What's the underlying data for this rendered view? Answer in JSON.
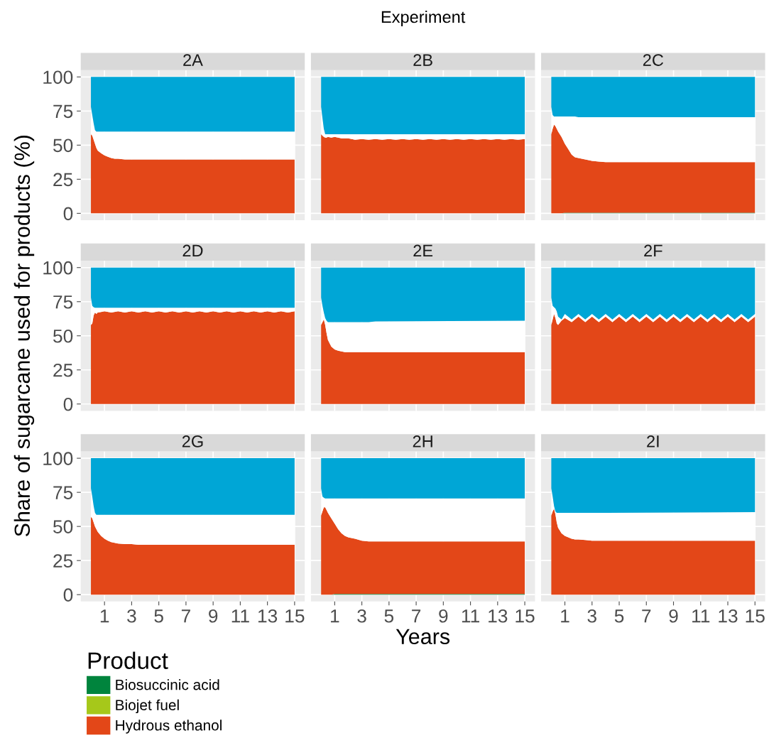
{
  "chart_data": [
    {
      "type": "area",
      "stacked": true,
      "title": "2A",
      "annotations": [
        "Experiment"
      ],
      "tick_labels": "y",
      "xlim": [
        -0.75,
        15.75
      ],
      "ylim": [
        -5,
        105
      ],
      "xticks": [
        1,
        3,
        5,
        7,
        9,
        11,
        13,
        15
      ],
      "yticks": [
        0,
        25,
        50,
        75,
        100
      ],
      "grid": true,
      "x": [
        0,
        0.1,
        0.2,
        0.3,
        0.4,
        0.5,
        0.75,
        1,
        1.25,
        1.5,
        1.75,
        2,
        2.5,
        3,
        3.5,
        4,
        15
      ],
      "series": [
        {
          "color": "#e34718",
          "values": [
            58,
            57,
            54,
            51,
            48,
            46,
            44,
            42.5,
            41.5,
            40.5,
            40,
            40,
            39.5,
            39.5,
            39.5,
            39.5,
            39.5
          ]
        },
        {
          "color": "#ffffff",
          "values": [
            20,
            15,
            12,
            10,
            12,
            14,
            16,
            17.5,
            18.5,
            19.5,
            20,
            20,
            20.5,
            20.5,
            20.5,
            20.5,
            20.5
          ]
        },
        {
          "color": "#00a6d6",
          "values": [
            22,
            28,
            34,
            39,
            40,
            40,
            40,
            40,
            40,
            40,
            40,
            40,
            40,
            40,
            40,
            40,
            40
          ]
        }
      ]
    },
    {
      "type": "area",
      "stacked": true,
      "title": "2B",
      "tick_labels": false,
      "xlim": [
        -0.75,
        15.75
      ],
      "ylim": [
        -5,
        105
      ],
      "xticks": [
        1,
        3,
        5,
        7,
        9,
        11,
        13,
        15
      ],
      "yticks": [
        0,
        25,
        50,
        75,
        100
      ],
      "grid": true,
      "x": [
        0,
        0.1,
        0.2,
        0.3,
        0.4,
        0.5,
        0.75,
        1,
        1.5,
        2,
        2.5,
        3,
        3.5,
        4,
        4.5,
        5,
        5.5,
        6,
        6.5,
        7,
        7.5,
        8,
        8.5,
        9,
        9.5,
        10,
        10.5,
        11,
        11.5,
        12,
        12.5,
        13,
        13.5,
        14,
        14.5,
        15
      ],
      "series": [
        {
          "color": "#e34718",
          "values": [
            58,
            57,
            56,
            55.5,
            55.5,
            56,
            55.5,
            56,
            55,
            55,
            54,
            54.5,
            54,
            54.5,
            54,
            54.5,
            54,
            54.5,
            54,
            54.5,
            54,
            54.5,
            54,
            54.5,
            54,
            54.5,
            54,
            54.5,
            54,
            54.5,
            54,
            54.5,
            54,
            54.5,
            54,
            54.5
          ]
        },
        {
          "color": "#ffffff",
          "values": [
            20,
            13,
            6,
            2.5,
            2.5,
            2,
            2.5,
            2,
            3,
            3,
            4,
            3.5,
            4,
            3.5,
            4,
            3.5,
            4,
            3.5,
            4,
            3.5,
            4,
            3.5,
            4,
            3.5,
            4,
            3.5,
            4,
            3.5,
            4,
            3.5,
            4,
            3.5,
            4,
            3.5,
            4,
            3.5
          ]
        },
        {
          "color": "#00a6d6",
          "values": [
            22,
            30,
            38,
            42,
            42,
            42,
            42,
            42,
            42,
            42,
            42,
            42,
            42,
            42,
            42,
            42,
            42,
            42,
            42,
            42,
            42,
            42,
            42,
            42,
            42,
            42,
            42,
            42,
            42,
            42,
            42,
            42,
            42,
            42,
            42,
            42
          ]
        }
      ]
    },
    {
      "type": "area",
      "stacked": true,
      "title": "2C",
      "tick_labels": false,
      "xlim": [
        -0.75,
        15.75
      ],
      "ylim": [
        -5,
        105
      ],
      "xticks": [
        1,
        3,
        5,
        7,
        9,
        11,
        13,
        15
      ],
      "yticks": [
        0,
        25,
        50,
        75,
        100
      ],
      "grid": true,
      "x": [
        0,
        0.1,
        0.2,
        0.3,
        0.4,
        0.5,
        0.75,
        1,
        1.25,
        1.5,
        1.75,
        2,
        2.5,
        3,
        3.5,
        4,
        15
      ],
      "series": [
        {
          "color": "#00843d",
          "values": [
            0,
            0,
            0,
            0,
            0,
            0,
            0,
            0.5,
            0.5,
            0.5,
            0.5,
            0.5,
            0.5,
            0.5,
            0.5,
            0.5,
            0.5
          ]
        },
        {
          "color": "#e34718",
          "values": [
            58,
            62,
            65,
            64,
            62,
            60,
            56,
            50.5,
            46.5,
            42.5,
            40.5,
            40,
            39,
            38,
            37.5,
            37,
            37
          ]
        },
        {
          "color": "#ffffff",
          "values": [
            20,
            10,
            6,
            7,
            9,
            11,
            15,
            20,
            24,
            28,
            30,
            30,
            31,
            32,
            32.5,
            33,
            33
          ]
        },
        {
          "color": "#00a6d6",
          "values": [
            22,
            28,
            29,
            29,
            29,
            29,
            29,
            29,
            29,
            29,
            29,
            29.5,
            29.5,
            29.5,
            29.5,
            29.5,
            29.5
          ]
        }
      ]
    },
    {
      "type": "area",
      "stacked": true,
      "title": "2D",
      "ylabel": "Share of sugarcane used for products (%)",
      "tick_labels": "y",
      "xlim": [
        -0.75,
        15.75
      ],
      "ylim": [
        -5,
        105
      ],
      "xticks": [
        1,
        3,
        5,
        7,
        9,
        11,
        13,
        15
      ],
      "yticks": [
        0,
        25,
        50,
        75,
        100
      ],
      "grid": true,
      "x": [
        0,
        0.1,
        0.2,
        0.3,
        0.4,
        0.5,
        0.75,
        1,
        1.5,
        2,
        2.5,
        3,
        3.5,
        4,
        4.5,
        5,
        5.5,
        6,
        6.5,
        7,
        7.5,
        8,
        8.5,
        9,
        9.5,
        10,
        10.5,
        11,
        11.5,
        12,
        12.5,
        13,
        13.5,
        14,
        14.5,
        15
      ],
      "series": [
        {
          "color": "#e34718",
          "values": [
            58,
            59,
            65,
            67,
            66,
            67,
            67.5,
            68,
            67,
            68,
            67,
            68,
            67,
            68,
            67,
            68,
            67,
            68,
            67,
            68,
            67,
            68,
            67,
            68,
            67,
            68,
            67,
            68,
            67,
            68,
            67,
            68,
            67,
            68,
            67,
            68
          ]
        },
        {
          "color": "#ffffff",
          "values": [
            20,
            13,
            6,
            3.5,
            4.5,
            3.5,
            3,
            2.5,
            3.5,
            2.5,
            3.5,
            2.5,
            3.5,
            2.5,
            3.5,
            2.5,
            3.5,
            2.5,
            3.5,
            2.5,
            3.5,
            2.5,
            3.5,
            2.5,
            3.5,
            2.5,
            3.5,
            2.5,
            3.5,
            2.5,
            3.5,
            2.5,
            3.5,
            2.5,
            3.5,
            2.5
          ]
        },
        {
          "color": "#00a6d6",
          "values": [
            22,
            28,
            29,
            29.5,
            29.5,
            29.5,
            29.5,
            29.5,
            29.5,
            29.5,
            29.5,
            29.5,
            29.5,
            29.5,
            29.5,
            29.5,
            29.5,
            29.5,
            29.5,
            29.5,
            29.5,
            29.5,
            29.5,
            29.5,
            29.5,
            29.5,
            29.5,
            29.5,
            29.5,
            29.5,
            29.5,
            29.5,
            29.5,
            29.5,
            29.5,
            29.5
          ]
        }
      ]
    },
    {
      "type": "area",
      "stacked": true,
      "title": "2E",
      "tick_labels": false,
      "xlim": [
        -0.75,
        15.75
      ],
      "ylim": [
        -5,
        105
      ],
      "xticks": [
        1,
        3,
        5,
        7,
        9,
        11,
        13,
        15
      ],
      "yticks": [
        0,
        25,
        50,
        75,
        100
      ],
      "grid": true,
      "x": [
        0,
        0.1,
        0.2,
        0.3,
        0.4,
        0.5,
        0.75,
        1,
        1.25,
        1.5,
        1.75,
        2,
        2.5,
        3,
        3.5,
        4,
        15
      ],
      "series": [
        {
          "color": "#e34718",
          "values": [
            58,
            60,
            62,
            58,
            52,
            47,
            42,
            40,
            39,
            38.5,
            38,
            38,
            38,
            38,
            38,
            38,
            38
          ]
        },
        {
          "color": "#ffffff",
          "values": [
            20,
            12,
            5,
            5,
            9,
            13,
            18,
            20,
            21,
            21.5,
            22,
            22,
            22,
            22,
            22,
            22.5,
            23
          ]
        },
        {
          "color": "#00a6d6",
          "values": [
            22,
            28,
            33,
            37,
            39,
            40,
            40,
            40,
            40,
            40,
            40,
            40,
            40,
            40,
            40,
            39.5,
            39
          ]
        }
      ]
    },
    {
      "type": "area",
      "stacked": true,
      "title": "2F",
      "tick_labels": false,
      "xlim": [
        -0.75,
        15.75
      ],
      "ylim": [
        -5,
        105
      ],
      "xticks": [
        1,
        3,
        5,
        7,
        9,
        11,
        13,
        15
      ],
      "yticks": [
        0,
        25,
        50,
        75,
        100
      ],
      "grid": true,
      "x": [
        0,
        0.1,
        0.2,
        0.3,
        0.4,
        0.5,
        0.75,
        1,
        1.5,
        2,
        2.5,
        3,
        3.5,
        4,
        4.5,
        5,
        5.5,
        6,
        6.5,
        7,
        7.5,
        8,
        8.5,
        9,
        9.5,
        10,
        10.5,
        11,
        11.5,
        12,
        12.5,
        13,
        13.5,
        14,
        14.5,
        15
      ],
      "series": [
        {
          "color": "#e34718",
          "values": [
            58,
            62,
            66,
            63,
            59,
            58,
            61,
            63,
            60,
            64,
            60,
            64,
            60,
            64,
            60,
            64,
            60,
            64,
            60,
            64,
            60,
            64,
            60,
            64,
            60,
            64,
            60,
            64,
            60,
            64,
            60,
            64,
            60,
            64,
            60,
            64
          ]
        },
        {
          "color": "#ffffff",
          "values": [
            20,
            10,
            5,
            7,
            9,
            6,
            1,
            3,
            2,
            2,
            2,
            2,
            2,
            2,
            2,
            2,
            2,
            2,
            2,
            2,
            2,
            2,
            2,
            2,
            2,
            2,
            2,
            2,
            2,
            2,
            2,
            2,
            2,
            2,
            2,
            2
          ]
        },
        {
          "color": "#00a6d6",
          "values": [
            22,
            28,
            29,
            30,
            32,
            36,
            38,
            34,
            38,
            34,
            38,
            34,
            38,
            34,
            38,
            34,
            38,
            34,
            38,
            34,
            38,
            34,
            38,
            34,
            38,
            34,
            38,
            34,
            38,
            34,
            38,
            34,
            38,
            34,
            38,
            34
          ]
        }
      ]
    },
    {
      "type": "area",
      "stacked": true,
      "title": "2G",
      "xlim": [
        -0.75,
        15.75
      ],
      "ylim": [
        -5,
        105
      ],
      "xticks": [
        1,
        3,
        5,
        7,
        9,
        11,
        13,
        15
      ],
      "yticks": [
        0,
        25,
        50,
        75,
        100
      ],
      "grid": true,
      "x": [
        0,
        0.1,
        0.2,
        0.3,
        0.4,
        0.5,
        0.75,
        1,
        1.25,
        1.5,
        1.75,
        2,
        2.5,
        3,
        3.5,
        4,
        15
      ],
      "series": [
        {
          "color": "#e34718",
          "values": [
            57,
            56,
            53,
            50,
            48,
            46,
            43,
            41,
            39.5,
            38.5,
            38,
            37.5,
            37,
            37,
            36.5,
            36.5,
            36.5
          ]
        },
        {
          "color": "#ffffff",
          "values": [
            21,
            16,
            12,
            10,
            10.5,
            12.5,
            15.5,
            17.5,
            19,
            20,
            20.5,
            21,
            21.5,
            21.5,
            22,
            22,
            22
          ]
        },
        {
          "color": "#00a6d6",
          "values": [
            22,
            28,
            35,
            40,
            41.5,
            41.5,
            41.5,
            41.5,
            41.5,
            41.5,
            41.5,
            41.5,
            41.5,
            41.5,
            41.5,
            41.5,
            41.5
          ]
        }
      ]
    },
    {
      "type": "area",
      "stacked": true,
      "title": "2H",
      "xlabel": "Years",
      "legend": "bottom",
      "legend_title": "Product",
      "tick_labels": "x",
      "xlim": [
        -0.75,
        15.75
      ],
      "ylim": [
        -5,
        105
      ],
      "xticks": [
        1,
        3,
        5,
        7,
        9,
        11,
        13,
        15
      ],
      "yticks": [
        0,
        25,
        50,
        75,
        100
      ],
      "grid": true,
      "x": [
        0,
        0.1,
        0.2,
        0.3,
        0.4,
        0.5,
        0.75,
        1,
        1.25,
        1.5,
        1.75,
        2,
        2.5,
        3,
        3.5,
        4,
        15
      ],
      "series": [
        {
          "name": "Biosuccinic acid",
          "color": "#00843d",
          "values": [
            0,
            0,
            0,
            0,
            0,
            0,
            0,
            0.5,
            0.5,
            0.5,
            0.5,
            0.5,
            0.5,
            0.5,
            0.5,
            0.5,
            0.5
          ]
        },
        {
          "name": "Biojet fuel",
          "color": "#a6c81a",
          "values": [
            null,
            null,
            null,
            null,
            null,
            null,
            null,
            null,
            null,
            null,
            null,
            null,
            null,
            null,
            null,
            null,
            null
          ]
        },
        {
          "name": "Hydrous ethanol",
          "color": "#e34718",
          "values": [
            58,
            61,
            64,
            64,
            62,
            60,
            56,
            51.5,
            47.5,
            44.5,
            42.5,
            41.5,
            40.5,
            39,
            38.5,
            38.5,
            38.5
          ]
        },
        {
          "color": "#ffffff",
          "values": [
            20,
            11,
            7,
            6.5,
            8.5,
            10.5,
            14.5,
            18.5,
            22.5,
            25.5,
            27.5,
            28.5,
            29.5,
            31,
            31.5,
            31.5,
            31.5
          ]
        },
        {
          "color": "#00a6d6",
          "values": [
            22,
            28,
            29,
            29.5,
            29.5,
            29.5,
            29.5,
            29.5,
            29.5,
            29.5,
            29.5,
            29.5,
            29.5,
            29.5,
            29.5,
            29.5,
            29.5
          ]
        }
      ]
    },
    {
      "type": "area",
      "stacked": true,
      "title": "2I",
      "tick_labels": "x",
      "xlim": [
        -0.75,
        15.75
      ],
      "ylim": [
        -5,
        105
      ],
      "xticks": [
        1,
        3,
        5,
        7,
        9,
        11,
        13,
        15
      ],
      "yticks": [
        0,
        25,
        50,
        75,
        100
      ],
      "grid": true,
      "x": [
        0,
        0.1,
        0.2,
        0.3,
        0.4,
        0.5,
        0.75,
        1,
        1.25,
        1.5,
        1.75,
        2,
        2.5,
        3,
        3.5,
        4,
        15
      ],
      "series": [
        {
          "color": "#e34718",
          "values": [
            58,
            61,
            63,
            59,
            53,
            49,
            45,
            43,
            42,
            41,
            40.5,
            40.5,
            40,
            39.5,
            39.5,
            39.5,
            39.5
          ]
        },
        {
          "color": "#ffffff",
          "values": [
            20,
            11,
            2,
            2,
            7,
            11,
            15,
            17,
            18,
            19,
            19.5,
            19.5,
            20,
            20.5,
            20.5,
            20.5,
            21
          ]
        },
        {
          "color": "#00a6d6",
          "values": [
            22,
            28,
            35,
            39,
            40,
            40,
            40,
            40,
            40,
            40,
            40,
            40,
            40,
            40,
            40,
            40,
            39.5
          ]
        }
      ]
    }
  ]
}
